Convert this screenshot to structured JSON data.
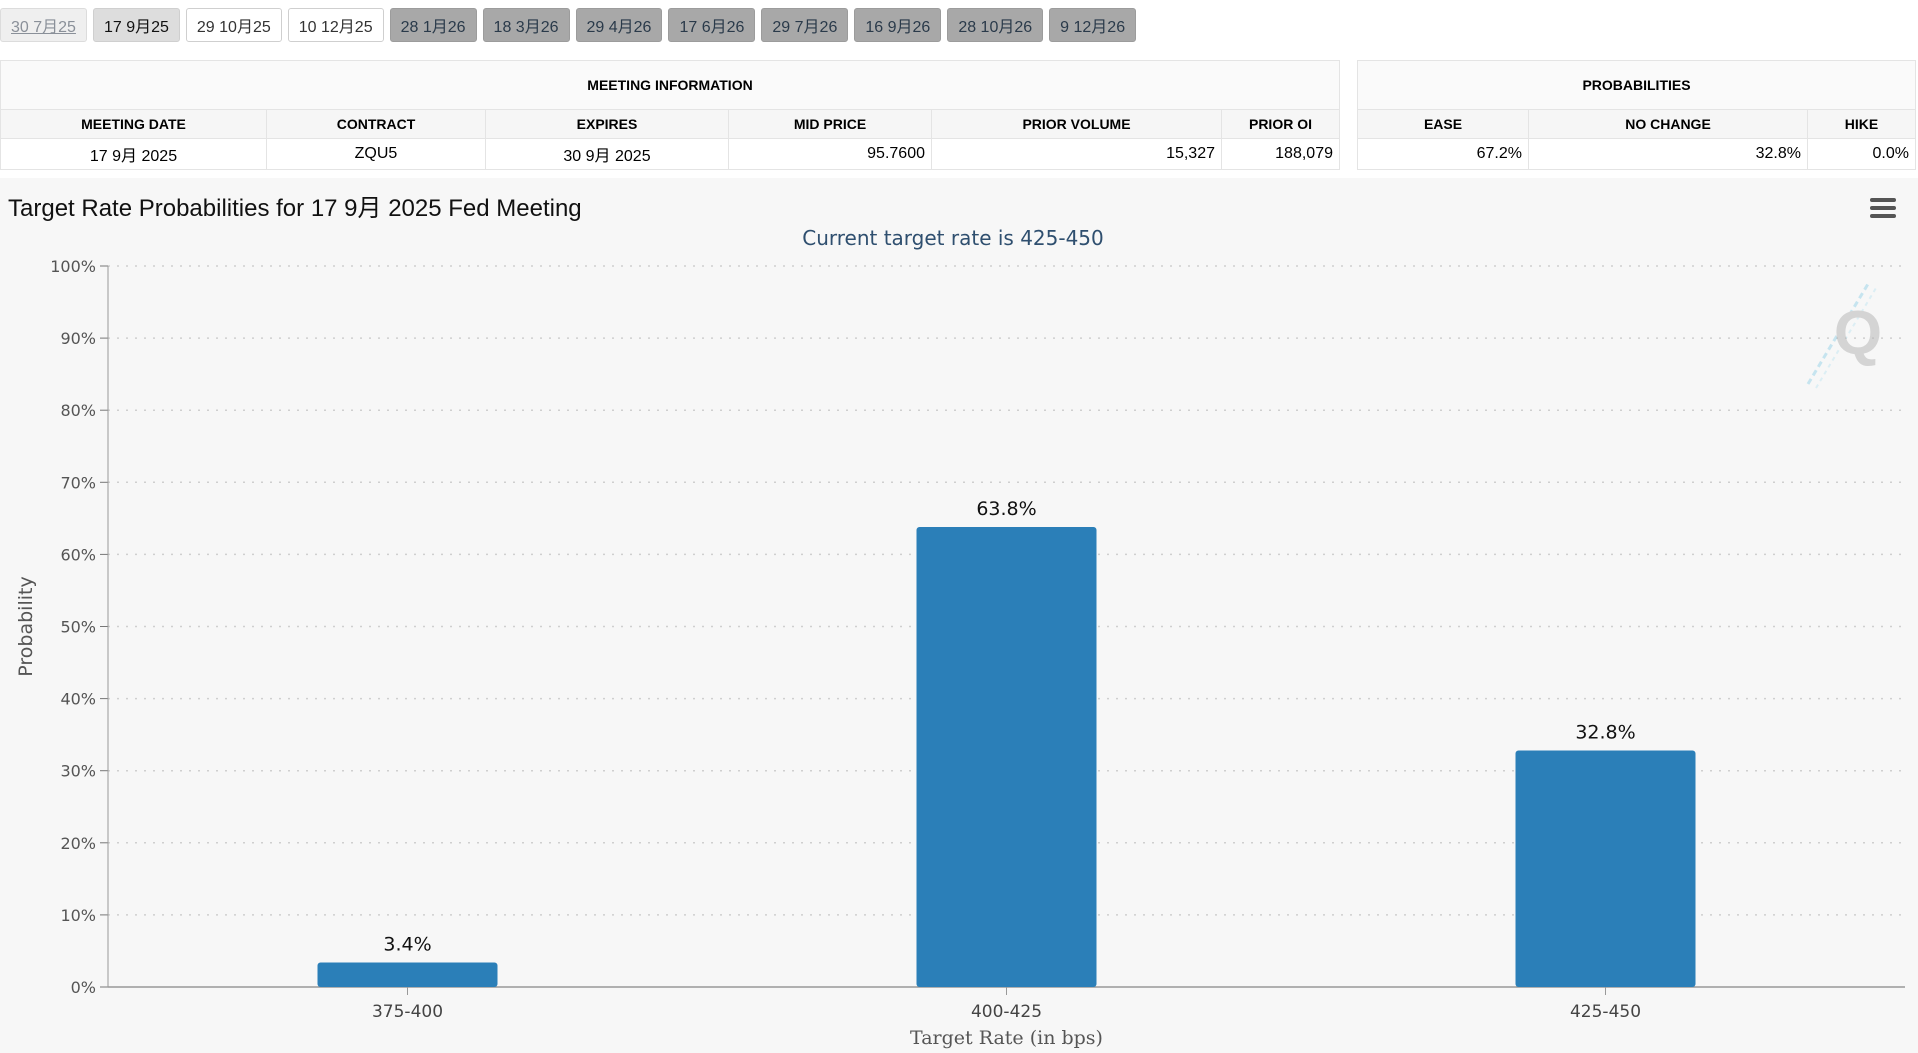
{
  "tabs": [
    {
      "label": "30 7月25",
      "state": "past"
    },
    {
      "label": "17 9月25",
      "state": "selected"
    },
    {
      "label": "29 10月25",
      "state": "normal"
    },
    {
      "label": "10 12月25",
      "state": "normal"
    },
    {
      "label": "28 1月26",
      "state": "future"
    },
    {
      "label": "18 3月26",
      "state": "future"
    },
    {
      "label": "29 4月26",
      "state": "future"
    },
    {
      "label": "17 6月26",
      "state": "future"
    },
    {
      "label": "29 7月26",
      "state": "future"
    },
    {
      "label": "16 9月26",
      "state": "future"
    },
    {
      "label": "28 10月26",
      "state": "future"
    },
    {
      "label": "9 12月26",
      "state": "future"
    }
  ],
  "meeting_info": {
    "title": "MEETING INFORMATION",
    "headers": [
      "MEETING DATE",
      "CONTRACT",
      "EXPIRES",
      "MID PRICE",
      "PRIOR VOLUME",
      "PRIOR OI"
    ],
    "row": [
      "17 9月 2025",
      "ZQU5",
      "30 9月 2025",
      "95.7600",
      "15,327",
      "188,079"
    ]
  },
  "probabilities": {
    "title": "PROBABILITIES",
    "headers": [
      "EASE",
      "NO CHANGE",
      "HIKE"
    ],
    "row": [
      "67.2%",
      "32.8%",
      "0.0%"
    ]
  },
  "chart_title": "Target Rate Probabilities for 17 9月 2025 Fed Meeting",
  "chart_data": {
    "type": "bar",
    "subtitle": "Current target rate is 425-450",
    "categories": [
      "375-400",
      "400-425",
      "425-450"
    ],
    "values": [
      3.4,
      63.8,
      32.8
    ],
    "data_labels": [
      "3.4%",
      "63.8%",
      "32.8%"
    ],
    "xlabel": "Target Rate (in bps)",
    "ylabel": "Probability",
    "ylim": [
      0,
      100
    ],
    "yticks": [
      "0%",
      "10%",
      "20%",
      "30%",
      "40%",
      "50%",
      "60%",
      "70%",
      "80%",
      "90%",
      "100%"
    ],
    "grid": true,
    "bar_color": "#2b7fb8",
    "subtitle_color": "#2f4f6f"
  },
  "colors": {
    "bar": "#2b7fb8",
    "chart_bg": "#f7f7f7"
  },
  "icons": {
    "menu": "hamburger-menu-icon",
    "watermark": "quikstrike-q-logo"
  }
}
